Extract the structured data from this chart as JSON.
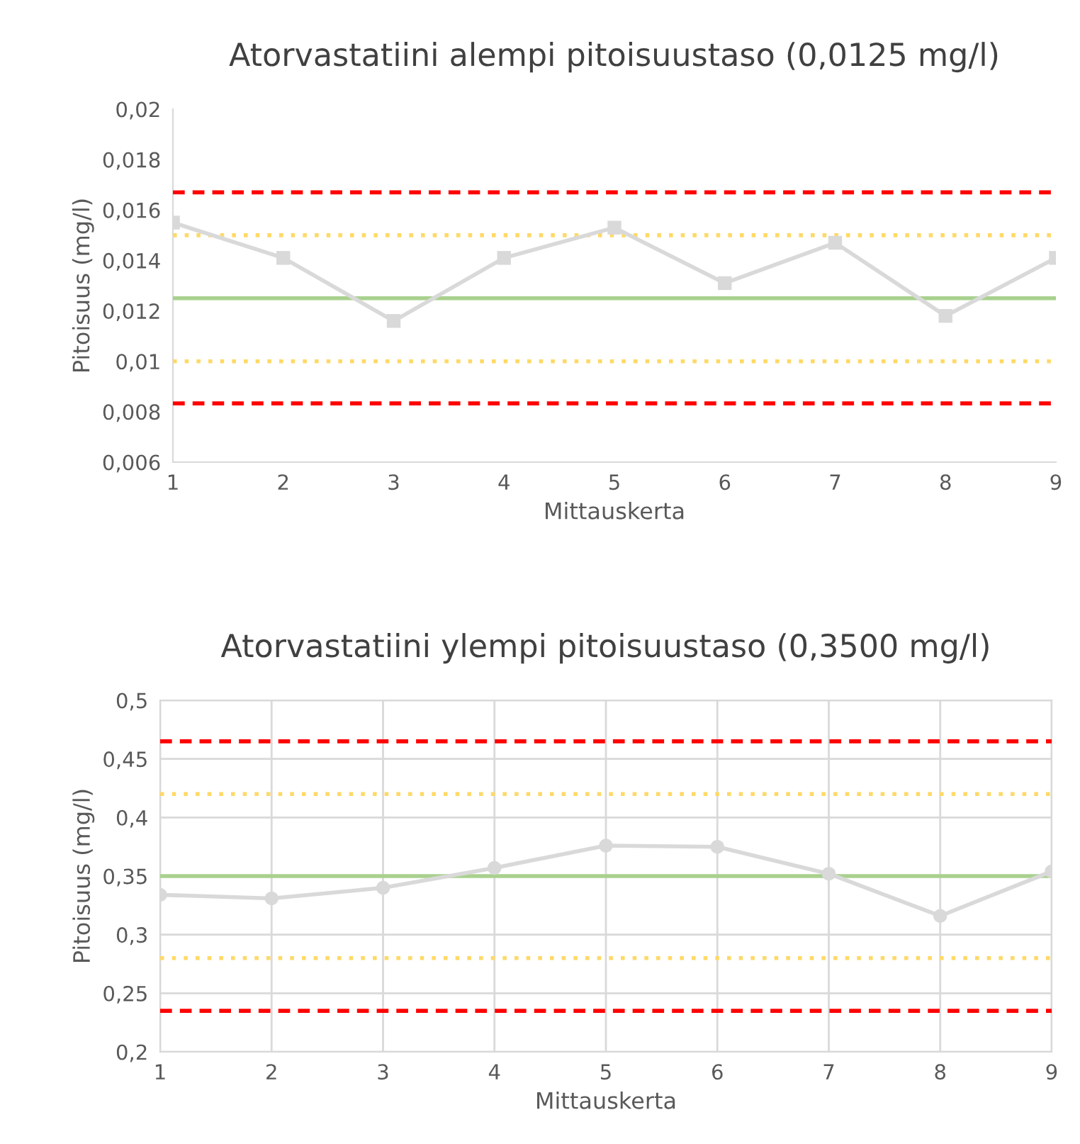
{
  "chart_data": [
    {
      "type": "line",
      "title": "Atorvastatiini alempi pitoisuustaso (0,0125 mg/l)",
      "xlabel": "Mittauskerta",
      "ylabel": "Pitoisuus (mg/l)",
      "x": [
        1,
        2,
        3,
        4,
        5,
        6,
        7,
        8,
        9
      ],
      "series": [
        {
          "color": "#d9d9d9",
          "values": [
            0.0155,
            0.0141,
            0.0116,
            0.0141,
            0.0153,
            0.0131,
            0.0147,
            0.0118,
            0.0141
          ]
        }
      ],
      "marker": "square",
      "grid": false,
      "legend": false,
      "xlim": [
        1,
        9
      ],
      "xticks": [
        1,
        2,
        3,
        4,
        5,
        6,
        7,
        8,
        9
      ],
      "ylim": [
        0.006,
        0.02
      ],
      "yticks": [
        {
          "value": 0.006,
          "label": "0,006"
        },
        {
          "value": 0.008,
          "label": "0,008"
        },
        {
          "value": 0.01,
          "label": "0,01"
        },
        {
          "value": 0.012,
          "label": "0,012"
        },
        {
          "value": 0.014,
          "label": "0,014"
        },
        {
          "value": 0.016,
          "label": "0,016"
        },
        {
          "value": 0.018,
          "label": "0,018"
        },
        {
          "value": 0.02,
          "label": "0,02"
        }
      ],
      "ref_lines": [
        {
          "axis": "y",
          "value": 0.0167,
          "color": "#ff0000",
          "line_style": "dashed"
        },
        {
          "axis": "y",
          "value": 0.015,
          "color": "#ffd966",
          "line_style": "dotted"
        },
        {
          "axis": "y",
          "value": 0.0125,
          "color": "#a9d18e",
          "line_style": "solid"
        },
        {
          "axis": "y",
          "value": 0.01,
          "color": "#ffd966",
          "line_style": "dotted"
        },
        {
          "axis": "y",
          "value": 0.00833,
          "color": "#ff0000",
          "line_style": "dashed"
        }
      ]
    },
    {
      "type": "line",
      "title": "Atorvastatiini ylempi pitoisuustaso (0,3500 mg/l)",
      "xlabel": "Mittauskerta",
      "ylabel": "Pitoisuus (mg/l)",
      "x": [
        1,
        2,
        3,
        4,
        5,
        6,
        7,
        8,
        9
      ],
      "series": [
        {
          "color": "#d9d9d9",
          "values": [
            0.334,
            0.331,
            0.34,
            0.357,
            0.376,
            0.375,
            0.352,
            0.316,
            0.354
          ]
        }
      ],
      "marker": "circle",
      "grid": true,
      "legend": false,
      "xlim": [
        1,
        9
      ],
      "xticks": [
        1,
        2,
        3,
        4,
        5,
        6,
        7,
        8,
        9
      ],
      "ylim": [
        0.2,
        0.5
      ],
      "yticks": [
        {
          "value": 0.2,
          "label": "0,2"
        },
        {
          "value": 0.25,
          "label": "0,25"
        },
        {
          "value": 0.3,
          "label": "0,3"
        },
        {
          "value": 0.35,
          "label": "0,35"
        },
        {
          "value": 0.4,
          "label": "0,4"
        },
        {
          "value": 0.45,
          "label": "0,45"
        },
        {
          "value": 0.5,
          "label": "0,5"
        }
      ],
      "ref_lines": [
        {
          "axis": "y",
          "value": 0.465,
          "color": "#ff0000",
          "line_style": "dashed"
        },
        {
          "axis": "y",
          "value": 0.42,
          "color": "#ffd966",
          "line_style": "dotted"
        },
        {
          "axis": "y",
          "value": 0.35,
          "color": "#a9d18e",
          "line_style": "solid"
        },
        {
          "axis": "y",
          "value": 0.28,
          "color": "#ffd966",
          "line_style": "dotted"
        },
        {
          "axis": "y",
          "value": 0.235,
          "color": "#ff0000",
          "line_style": "dashed"
        }
      ]
    }
  ]
}
